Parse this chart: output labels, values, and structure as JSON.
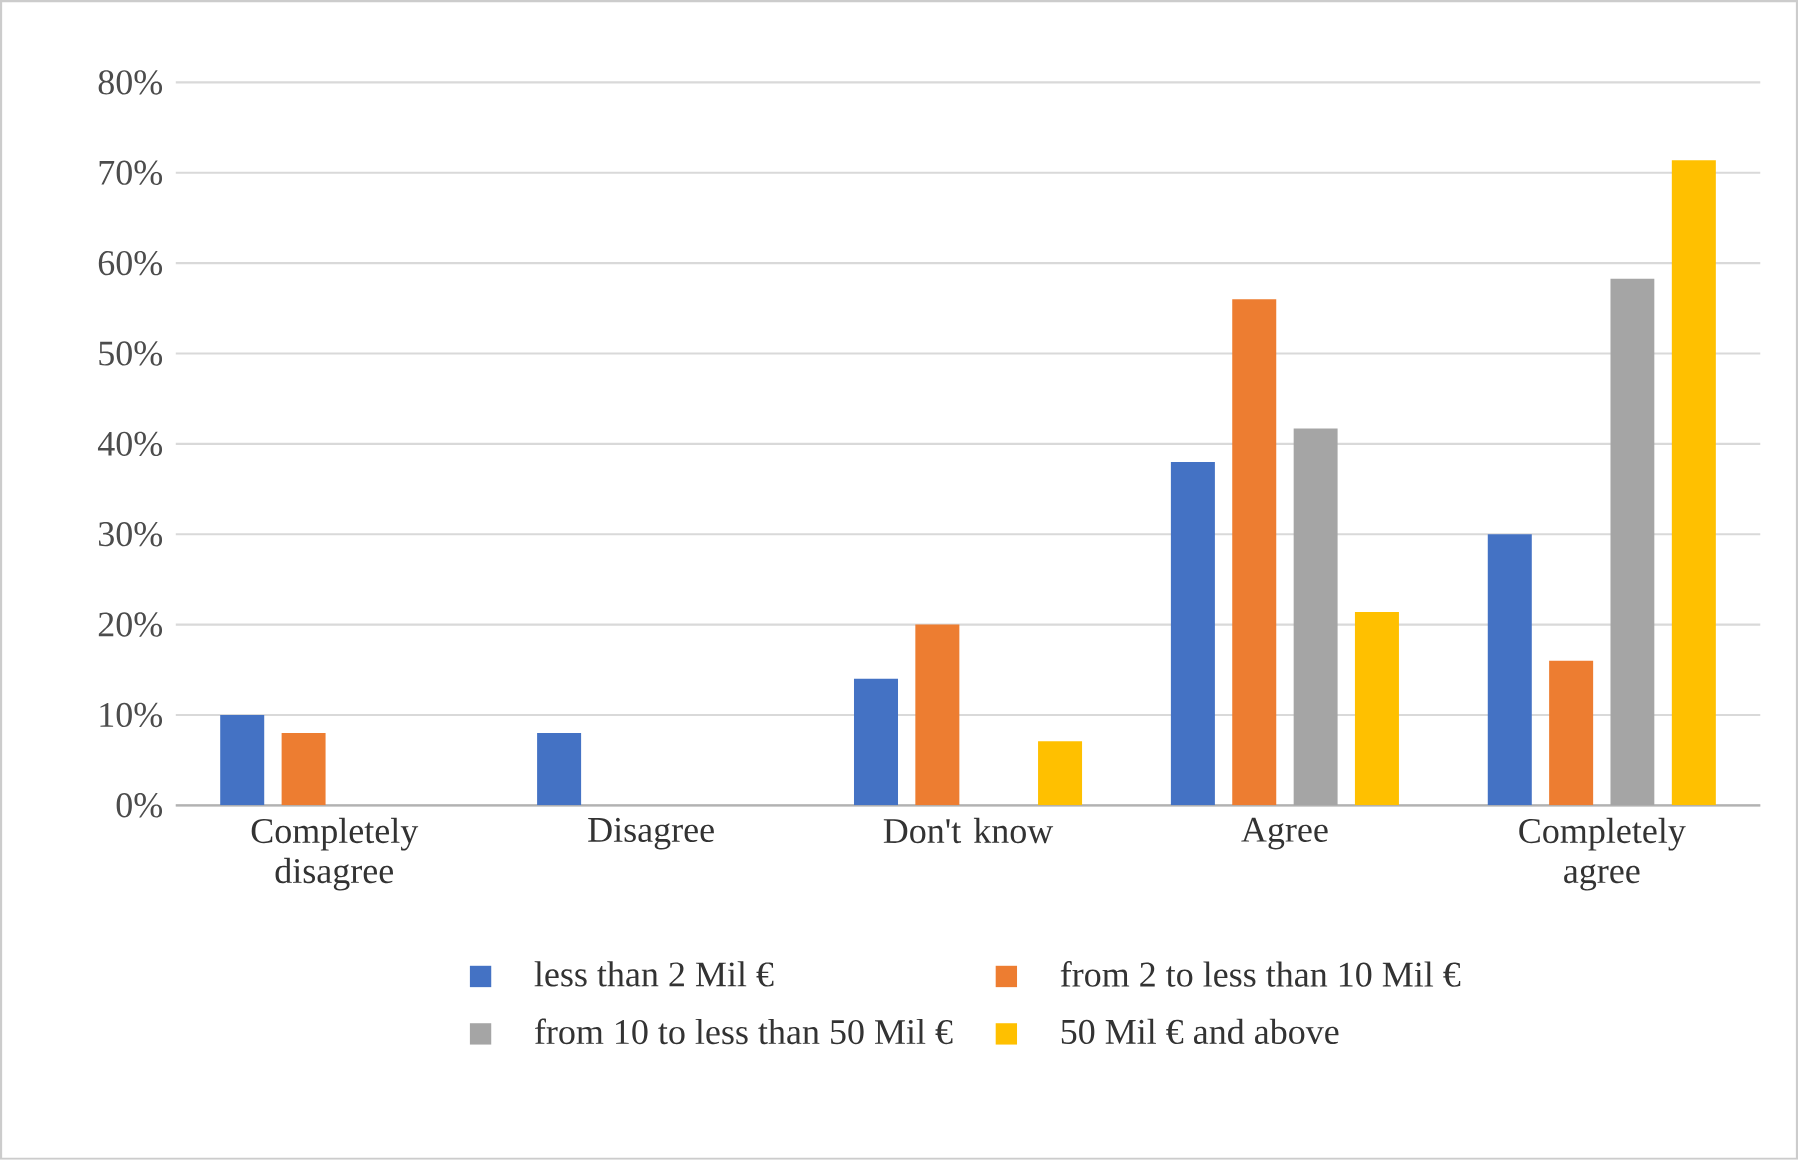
{
  "chart_data": {
    "type": "bar",
    "categories": [
      "Completely disagree",
      "Disagree",
      "Don't know",
      "Agree",
      "Completely agree"
    ],
    "series": [
      {
        "name": "less than 2 Mil €",
        "color": "#4472c4",
        "values": [
          10,
          8,
          14,
          38,
          30
        ]
      },
      {
        "name": "from 2 to less than 10 Mil €",
        "color": "#ed7d31",
        "values": [
          8,
          null,
          20,
          56,
          16
        ]
      },
      {
        "name": "from 10 to less than 50 Mil €",
        "color": "#a5a5a5",
        "values": [
          null,
          null,
          null,
          41.7,
          58.3
        ]
      },
      {
        "name": "50 Mil € and above",
        "color": "#ffc000",
        "values": [
          null,
          null,
          7.1,
          21.4,
          71.4
        ]
      }
    ],
    "ylim": [
      0,
      80
    ],
    "yticks": [
      {
        "value": 0,
        "label": "0%"
      },
      {
        "value": 10,
        "label": "10%"
      },
      {
        "value": 20,
        "label": "20%"
      },
      {
        "value": 30,
        "label": "30%"
      },
      {
        "value": 40,
        "label": "40%"
      },
      {
        "value": 50,
        "label": "50%"
      },
      {
        "value": 60,
        "label": "60%"
      },
      {
        "value": 70,
        "label": "70%"
      },
      {
        "value": 80,
        "label": "80%"
      }
    ],
    "grid": "y",
    "legend": "bottom"
  }
}
